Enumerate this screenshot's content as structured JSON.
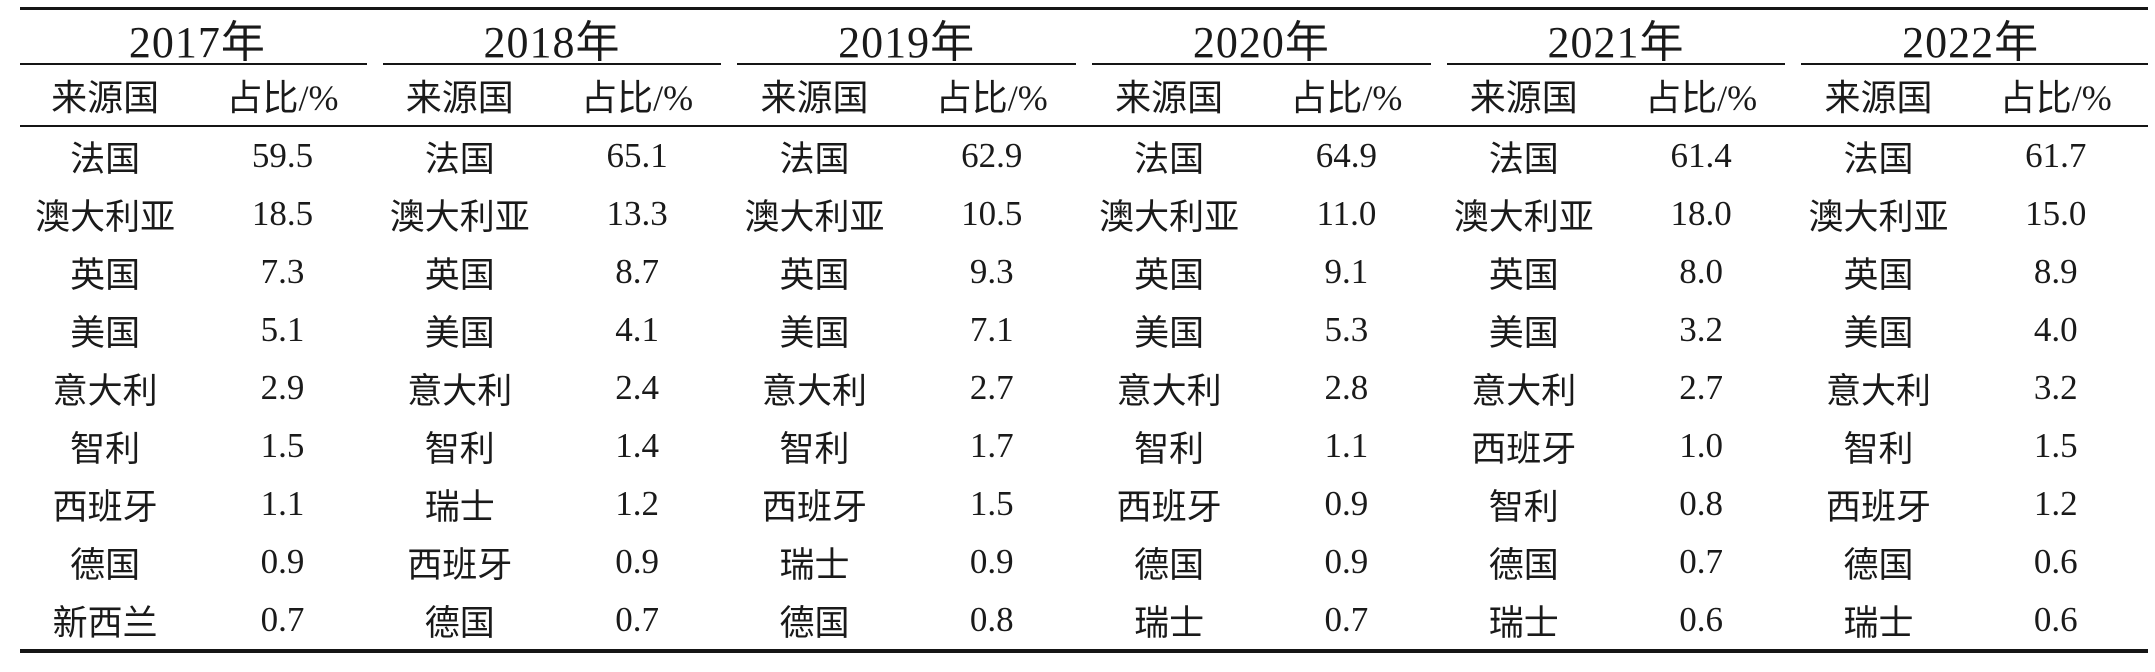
{
  "table": {
    "description": "来源国占比表 2017-2022",
    "columns_header": {
      "country": "来源国",
      "share": "占比/%"
    },
    "groups": [
      {
        "year": "2017年",
        "rows": [
          [
            "法国",
            "59.5"
          ],
          [
            "澳大利亚",
            "18.5"
          ],
          [
            "英国",
            "7.3"
          ],
          [
            "美国",
            "5.1"
          ],
          [
            "意大利",
            "2.9"
          ],
          [
            "智利",
            "1.5"
          ],
          [
            "西班牙",
            "1.1"
          ],
          [
            "德国",
            "0.9"
          ],
          [
            "新西兰",
            "0.7"
          ]
        ]
      },
      {
        "year": "2018年",
        "rows": [
          [
            "法国",
            "65.1"
          ],
          [
            "澳大利亚",
            "13.3"
          ],
          [
            "英国",
            "8.7"
          ],
          [
            "美国",
            "4.1"
          ],
          [
            "意大利",
            "2.4"
          ],
          [
            "智利",
            "1.4"
          ],
          [
            "瑞士",
            "1.2"
          ],
          [
            "西班牙",
            "0.9"
          ],
          [
            "德国",
            "0.7"
          ]
        ]
      },
      {
        "year": "2019年",
        "rows": [
          [
            "法国",
            "62.9"
          ],
          [
            "澳大利亚",
            "10.5"
          ],
          [
            "英国",
            "9.3"
          ],
          [
            "美国",
            "7.1"
          ],
          [
            "意大利",
            "2.7"
          ],
          [
            "智利",
            "1.7"
          ],
          [
            "西班牙",
            "1.5"
          ],
          [
            "瑞士",
            "0.9"
          ],
          [
            "德国",
            "0.8"
          ]
        ]
      },
      {
        "year": "2020年",
        "rows": [
          [
            "法国",
            "64.9"
          ],
          [
            "澳大利亚",
            "11.0"
          ],
          [
            "英国",
            "9.1"
          ],
          [
            "美国",
            "5.3"
          ],
          [
            "意大利",
            "2.8"
          ],
          [
            "智利",
            "1.1"
          ],
          [
            "西班牙",
            "0.9"
          ],
          [
            "德国",
            "0.9"
          ],
          [
            "瑞士",
            "0.7"
          ]
        ]
      },
      {
        "year": "2021年",
        "rows": [
          [
            "法国",
            "61.4"
          ],
          [
            "澳大利亚",
            "18.0"
          ],
          [
            "英国",
            "8.0"
          ],
          [
            "美国",
            "3.2"
          ],
          [
            "意大利",
            "2.7"
          ],
          [
            "西班牙",
            "1.0"
          ],
          [
            "智利",
            "0.8"
          ],
          [
            "德国",
            "0.7"
          ],
          [
            "瑞士",
            "0.6"
          ]
        ]
      },
      {
        "year": "2022年",
        "rows": [
          [
            "法国",
            "61.7"
          ],
          [
            "澳大利亚",
            "15.0"
          ],
          [
            "英国",
            "8.9"
          ],
          [
            "美国",
            "4.0"
          ],
          [
            "意大利",
            "3.2"
          ],
          [
            "智利",
            "1.5"
          ],
          [
            "西班牙",
            "1.2"
          ],
          [
            "德国",
            "0.6"
          ],
          [
            "瑞士",
            "0.6"
          ]
        ]
      }
    ]
  },
  "colors": {
    "text": "#1a1a1a",
    "rule": "#151515",
    "background": "#ffffff"
  }
}
